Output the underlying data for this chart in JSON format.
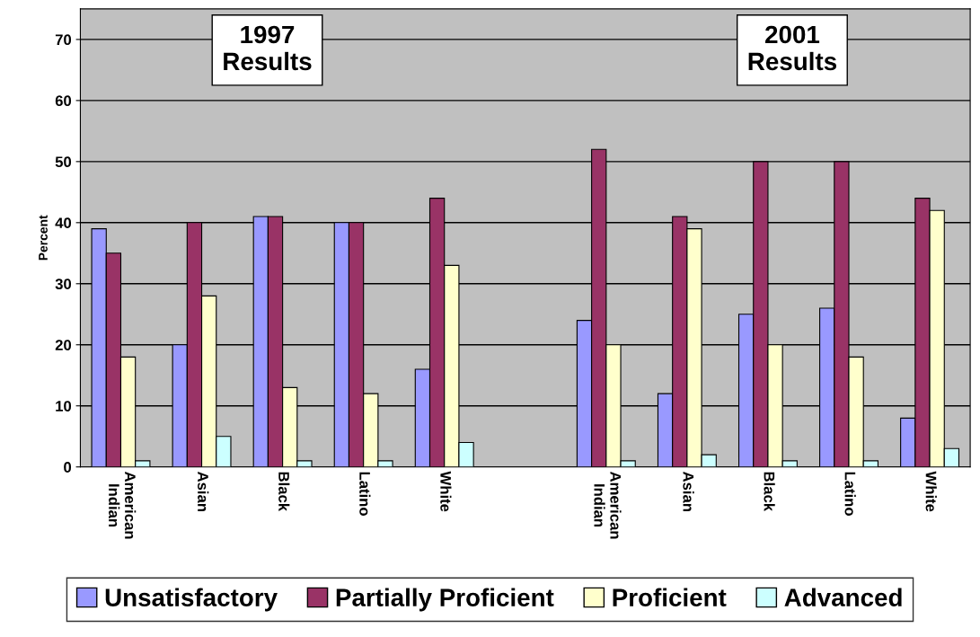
{
  "chart_data": {
    "type": "bar",
    "ylabel": "Percent",
    "categories": [
      "American\nIndian",
      "Asian",
      "Black",
      "Latino",
      "White",
      null,
      "American\nIndian",
      "Asian",
      "Black",
      "Latino",
      "White"
    ],
    "series": [
      {
        "name": "Unsatisfactory",
        "color": "#9999ff",
        "values": [
          39,
          20,
          41,
          40,
          16,
          null,
          24,
          12,
          25,
          26,
          8
        ]
      },
      {
        "name": "Partially Proficient",
        "color": "#993366",
        "values": [
          35,
          40,
          41,
          40,
          44,
          null,
          52,
          41,
          50,
          50,
          44
        ]
      },
      {
        "name": "Proficient",
        "color": "#ffffcc",
        "values": [
          18,
          28,
          13,
          12,
          33,
          null,
          20,
          39,
          20,
          18,
          42
        ]
      },
      {
        "name": "Advanced",
        "color": "#ccffff",
        "values": [
          1,
          5,
          1,
          1,
          4,
          null,
          1,
          2,
          1,
          1,
          3
        ]
      }
    ],
    "ylim": [
      0,
      75
    ],
    "yticks": [
      0,
      10,
      20,
      30,
      40,
      50,
      60,
      70
    ],
    "grid": "y",
    "legend": "bottom",
    "annotations": [
      "1997\nResults",
      "2001\nResults"
    ]
  }
}
